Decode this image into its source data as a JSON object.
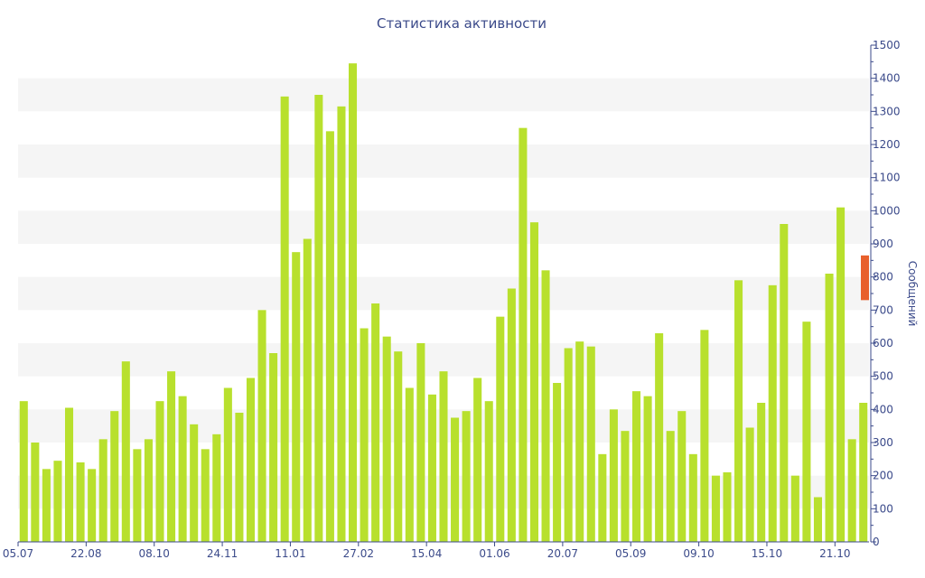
{
  "chart_data": {
    "type": "bar",
    "title": "Статистика активности",
    "xlabel": "",
    "ylabel": "Сообщений",
    "ylim": [
      0,
      1500
    ],
    "y_ticks": [
      "0",
      "100",
      "200",
      "300",
      "400",
      "500",
      "600",
      "700",
      "800",
      "900",
      "1000",
      "1100",
      "1200",
      "1300",
      "1400",
      "1500"
    ],
    "x_tick_labels": [
      "05.07",
      "22.08",
      "08.10",
      "24.11",
      "11.01",
      "27.02",
      "15.04",
      "01.06",
      "20.07",
      "05.09",
      "09.10",
      "15.10",
      "21.10"
    ],
    "x_tick_bar_index": [
      0,
      6,
      12,
      18,
      24,
      30,
      36,
      42,
      48,
      54,
      60,
      66,
      72
    ],
    "y_axis_side": "right",
    "grid": "alternating horizontal bands",
    "values": [
      425,
      300,
      220,
      245,
      405,
      240,
      220,
      310,
      395,
      545,
      280,
      310,
      425,
      515,
      440,
      355,
      280,
      325,
      465,
      390,
      495,
      700,
      570,
      1345,
      875,
      915,
      1350,
      1240,
      1315,
      1445,
      645,
      720,
      620,
      575,
      465,
      600,
      445,
      515,
      375,
      395,
      495,
      425,
      680,
      765,
      1250,
      965,
      820,
      480,
      585,
      605,
      590,
      265,
      400,
      335,
      455,
      440,
      630,
      335,
      395,
      265,
      640,
      200,
      210,
      790,
      345,
      420,
      775,
      960,
      200,
      665,
      135,
      810,
      1010,
      310,
      420
    ],
    "highlight_range": [
      730,
      865
    ],
    "colors": {
      "bar": "#b8e02d",
      "highlight": "#e8602c",
      "band": "#f5f5f5",
      "axis": "#3b4a8a"
    }
  }
}
